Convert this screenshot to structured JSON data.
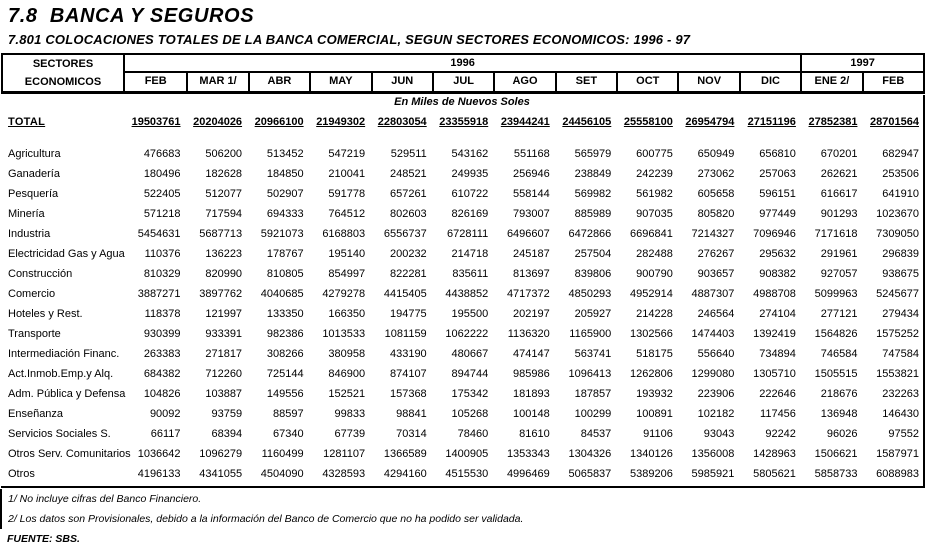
{
  "page": {
    "title": "7.8  BANCA Y SEGUROS",
    "subtitle": "7.801 COLOCACIONES TOTALES DE LA BANCA COMERCIAL, SEGUN SECTORES ECONOMICOS: 1996 - 97"
  },
  "table": {
    "row_header_line1": "SECTORES",
    "row_header_line2": "ECONOMICOS",
    "year_groups": [
      {
        "label": "1996",
        "span": 11
      },
      {
        "label": "1997",
        "span": 2
      }
    ],
    "columns": [
      "FEB",
      "MAR 1/",
      "ABR",
      "MAY",
      "JUN",
      "JUL",
      "AGO",
      "SET",
      "OCT",
      "NOV",
      "DIC",
      "ENE 2/",
      "FEB"
    ],
    "units_note": "En Miles de Nuevos Soles",
    "total_row": {
      "label": "TOTAL",
      "values": [
        "19503761",
        "20204026",
        "20966100",
        "21949302",
        "22803054",
        "23355918",
        "23944241",
        "24456105",
        "25558100",
        "26954794",
        "27151196",
        "27852381",
        "28701564"
      ]
    },
    "rows": [
      {
        "label": "Agricultura",
        "values": [
          "476683",
          "506200",
          "513452",
          "547219",
          "529511",
          "543162",
          "551168",
          "565979",
          "600775",
          "650949",
          "656810",
          "670201",
          "682947"
        ]
      },
      {
        "label": "Ganadería",
        "values": [
          "180496",
          "182628",
          "184850",
          "210041",
          "248521",
          "249935",
          "256946",
          "238849",
          "242239",
          "273062",
          "257063",
          "262621",
          "253506"
        ]
      },
      {
        "label": "Pesquería",
        "values": [
          "522405",
          "512077",
          "502907",
          "591778",
          "657261",
          "610722",
          "558144",
          "569982",
          "561982",
          "605658",
          "596151",
          "616617",
          "641910"
        ]
      },
      {
        "label": "Minería",
        "values": [
          "571218",
          "717594",
          "694333",
          "764512",
          "802603",
          "826169",
          "793007",
          "885989",
          "907035",
          "805820",
          "977449",
          "901293",
          "1023670"
        ]
      },
      {
        "label": "Industria",
        "values": [
          "5454631",
          "5687713",
          "5921073",
          "6168803",
          "6556737",
          "6728111",
          "6496607",
          "6472866",
          "6696841",
          "7214327",
          "7096946",
          "7171618",
          "7309050"
        ]
      },
      {
        "label": "Electricidad Gas y Agua",
        "values": [
          "110376",
          "136223",
          "178767",
          "195140",
          "200232",
          "214718",
          "245187",
          "257504",
          "282488",
          "276267",
          "295632",
          "291961",
          "296839"
        ]
      },
      {
        "label": "Construcción",
        "values": [
          "810329",
          "820990",
          "810805",
          "854997",
          "822281",
          "835611",
          "813697",
          "839806",
          "900790",
          "903657",
          "908382",
          "927057",
          "938675"
        ]
      },
      {
        "label": "Comercio",
        "values": [
          "3887271",
          "3897762",
          "4040685",
          "4279278",
          "4415405",
          "4438852",
          "4717372",
          "4850293",
          "4952914",
          "4887307",
          "4988708",
          "5099963",
          "5245677"
        ]
      },
      {
        "label": "Hoteles y Rest.",
        "values": [
          "118378",
          "121997",
          "133350",
          "166350",
          "194775",
          "195500",
          "202197",
          "205927",
          "214228",
          "246564",
          "274104",
          "277121",
          "279434"
        ]
      },
      {
        "label": "Transporte",
        "values": [
          "930399",
          "933391",
          "982386",
          "1013533",
          "1081159",
          "1062222",
          "1136320",
          "1165900",
          "1302566",
          "1474403",
          "1392419",
          "1564826",
          "1575252"
        ]
      },
      {
        "label": "Intermediación Financ.",
        "values": [
          "263383",
          "271817",
          "308266",
          "380958",
          "433190",
          "480667",
          "474147",
          "563741",
          "518175",
          "556640",
          "734894",
          "746584",
          "747584"
        ]
      },
      {
        "label": "Act.Inmob.Emp.y Alq.",
        "values": [
          "684382",
          "712260",
          "725144",
          "846900",
          "874107",
          "894744",
          "985986",
          "1096413",
          "1262806",
          "1299080",
          "1305710",
          "1505515",
          "1553821"
        ]
      },
      {
        "label": "Adm. Pública y Defensa",
        "values": [
          "104826",
          "103887",
          "149556",
          "152521",
          "157368",
          "175342",
          "181893",
          "187857",
          "193932",
          "223906",
          "222646",
          "218676",
          "232263"
        ]
      },
      {
        "label": "Enseñanza",
        "values": [
          "90092",
          "93759",
          "88597",
          "99833",
          "98841",
          "105268",
          "100148",
          "100299",
          "100891",
          "102182",
          "117456",
          "136948",
          "146430"
        ]
      },
      {
        "label": "Servicios Sociales S.",
        "values": [
          "66117",
          "68394",
          "67340",
          "67739",
          "70314",
          "78460",
          "81610",
          "84537",
          "91106",
          "93043",
          "92242",
          "96026",
          "97552"
        ]
      },
      {
        "label": "Otros Serv. Comunitarios",
        "values": [
          "1036642",
          "1096279",
          "1160499",
          "1281107",
          "1366589",
          "1400905",
          "1353343",
          "1304326",
          "1340126",
          "1356008",
          "1428963",
          "1506621",
          "1587971"
        ]
      },
      {
        "label": "Otros",
        "values": [
          "4196133",
          "4341055",
          "4504090",
          "4328593",
          "4294160",
          "4515530",
          "4996469",
          "5065837",
          "5389206",
          "5985921",
          "5805621",
          "5858733",
          "6088983"
        ]
      }
    ]
  },
  "footnotes": [
    "1/ No incluye cifras del Banco Financiero.",
    "2/ Los datos son Provisionales, debido a la información del Banco de Comercio que no ha podido ser validada."
  ],
  "source": "FUENTE: SBS."
}
